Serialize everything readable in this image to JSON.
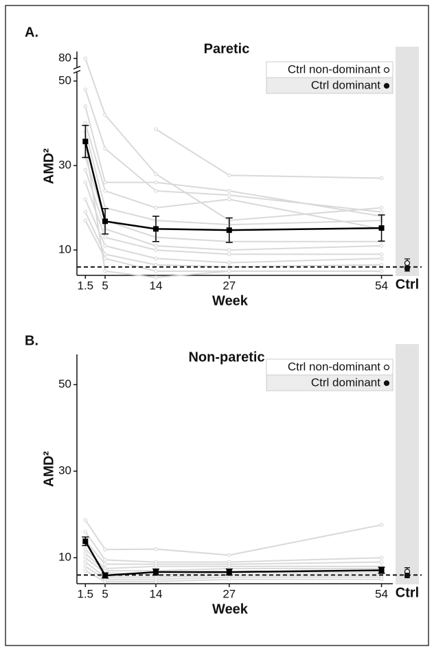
{
  "chart_data": [
    {
      "type": "line",
      "panel_label": "A.",
      "title": "Paretic",
      "y_label": "AMD²",
      "x_label": "Week",
      "x": [
        1.5,
        5,
        14,
        27,
        54
      ],
      "xlim": [
        0,
        56
      ],
      "xticks": [
        1.5,
        5,
        14,
        27,
        54
      ],
      "ylim": [
        4,
        82
      ],
      "y_break": [
        50,
        80
      ],
      "yticks": [
        10,
        30,
        50,
        80
      ],
      "legend": "upper right",
      "mean": {
        "color": "#000000",
        "values": [
          35.7,
          16.8,
          15,
          14.7,
          15.2
        ],
        "errors": [
          3.8,
          3,
          3,
          2.9,
          3.1
        ]
      },
      "individual": {
        "color": "#d9d9d9",
        "series": [
          [
            80,
            42,
            28,
            17,
            20
          ],
          [
            48,
            34,
            24,
            23,
            19
          ],
          [
            44,
            26,
            26,
            24,
            18
          ],
          [
            40,
            24,
            20,
            22,
            15
          ],
          [
            38,
            20,
            17,
            16,
            17
          ],
          [
            null,
            null,
            38.6,
            27.7,
            27
          ],
          [
            32,
            17,
            13,
            12,
            12
          ],
          [
            29,
            15,
            11,
            10,
            11
          ],
          [
            26,
            13,
            10,
            9,
            9
          ],
          [
            22,
            11,
            8,
            7,
            8
          ],
          [
            19,
            9,
            6.5,
            6,
            6.5
          ],
          [
            17,
            8,
            5,
            5,
            5
          ],
          [
            35,
            5,
            3.5,
            5,
            5
          ]
        ]
      },
      "control": {
        "label": "Ctrl",
        "reference": 6,
        "series": [
          {
            "name": "Ctrl non-dominant",
            "marker": "open",
            "values": [
              6.9
            ],
            "errors": [
              1
            ]
          },
          {
            "name": "Ctrl dominant",
            "marker": "filled",
            "values": [
              5.6
            ],
            "errors": [
              0.6
            ]
          }
        ]
      }
    },
    {
      "type": "line",
      "panel_label": "B.",
      "title": "Non-paretic",
      "y_label": "AMD²",
      "x_label": "Week",
      "x": [
        1.5,
        5,
        14,
        27,
        54
      ],
      "xlim": [
        0,
        56
      ],
      "xticks": [
        1.5,
        5,
        14,
        27,
        54
      ],
      "ylim": [
        4,
        57
      ],
      "yticks": [
        10,
        30,
        50
      ],
      "legend": "upper right",
      "mean": {
        "color": "#000000",
        "values": [
          13.8,
          5.9,
          6.7,
          6.7,
          7.1
        ],
        "errors": [
          1,
          0.6,
          0.7,
          0.7,
          0.7
        ]
      },
      "individual": {
        "color": "#d9d9d9",
        "series": [
          [
            18.7,
            11.9,
            12,
            10.6,
            17.6
          ],
          [
            16,
            9.5,
            9,
            9,
            10
          ],
          [
            14,
            8.5,
            8.5,
            8.5,
            9
          ],
          [
            12,
            7.5,
            8,
            8,
            8
          ],
          [
            11,
            7,
            7,
            7.5,
            7.5
          ],
          [
            10,
            6.5,
            6,
            6.5,
            6.5
          ],
          [
            9,
            5.5,
            5.5,
            6,
            6
          ],
          [
            8,
            5,
            5,
            5.5,
            5.5
          ],
          [
            7,
            4.5,
            4.5,
            5,
            5
          ]
        ]
      },
      "control": {
        "label": "Ctrl",
        "reference": 6,
        "series": [
          {
            "name": "Ctrl non-dominant",
            "marker": "open",
            "values": [
              6.8
            ],
            "errors": [
              0.9
            ]
          },
          {
            "name": "Ctrl dominant",
            "marker": "filled",
            "values": [
              5.9
            ],
            "errors": [
              0.5
            ]
          }
        ]
      }
    }
  ]
}
